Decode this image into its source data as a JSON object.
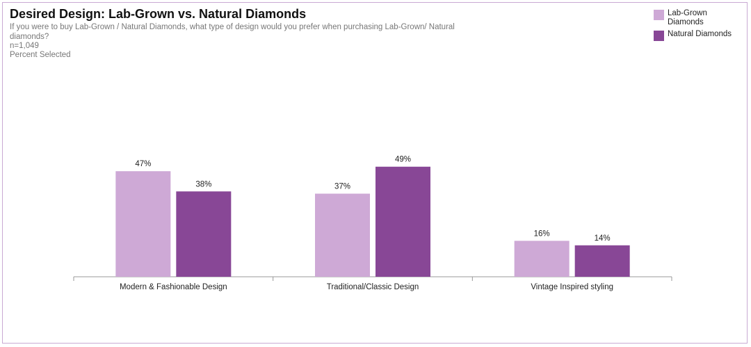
{
  "title": "Desired Design: Lab-Grown vs. Natural Diamonds",
  "subtitle": "If you were to buy Lab-Grown / Natural Diamonds, what type of design would you prefer when purchasing Lab-Grown/ Natural diamonds?",
  "sample_size": "n=1,049",
  "measure": "Percent Selected",
  "colors": {
    "lab_grown": "#cea9d6",
    "natural": "#884796",
    "axis": "#999999",
    "frame": "#c9a9d3"
  },
  "chart_data": {
    "type": "bar",
    "title": "Desired Design: Lab-Grown vs. Natural Diamonds",
    "categories": [
      "Modern & Fashionable Design",
      "Traditional/Classic Design",
      "Vintage Inspired styling"
    ],
    "series": [
      {
        "name": "Lab-Grown Diamonds",
        "values": [
          47,
          37,
          16
        ],
        "labels": [
          "47%",
          "37%",
          "16%"
        ],
        "color": "#cea9d6"
      },
      {
        "name": "Natural Diamonds",
        "values": [
          38,
          49,
          14
        ],
        "labels": [
          "38%",
          "49%",
          "14%"
        ],
        "color": "#884796"
      }
    ],
    "ylim": [
      0,
      60
    ],
    "unit": "%",
    "grid": false,
    "legend_position": "top-right"
  }
}
